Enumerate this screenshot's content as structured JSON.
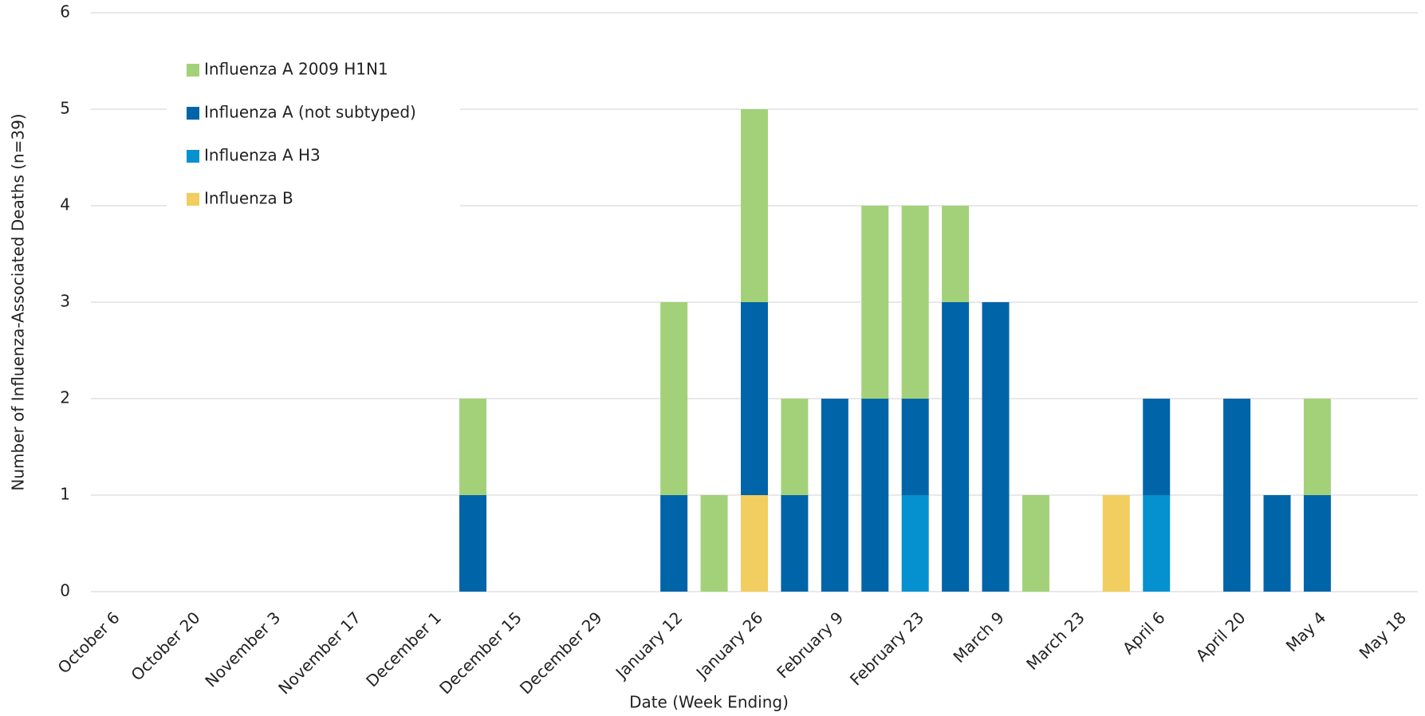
{
  "chart_data": {
    "type": "stacked_bar",
    "x_label": "Date (Week Ending)",
    "y_label": "Number of Influenza-Associated Deaths (n=39)",
    "categories": [
      "October 6",
      null,
      "October 20",
      null,
      "November 3",
      null,
      "November 17",
      null,
      "December 1",
      null,
      "December 15",
      null,
      "December 29",
      null,
      "January 12",
      null,
      "January 26",
      null,
      "February 9",
      null,
      "February 23",
      null,
      "March 9",
      null,
      "March 23",
      null,
      "April 6",
      null,
      "April 20",
      null,
      "May 4",
      null,
      "May 18"
    ],
    "series": [
      {
        "name": "Influenza A 2009 H1N1",
        "color": "#a3d17a",
        "values": [
          0,
          0,
          0,
          0,
          0,
          0,
          0,
          0,
          0,
          1,
          0,
          0,
          0,
          0,
          2,
          1,
          2,
          1,
          0,
          2,
          2,
          1,
          0,
          1,
          0,
          0,
          0,
          0,
          0,
          0,
          1,
          0,
          0
        ]
      },
      {
        "name": "Influenza A (not subtyped)",
        "color": "#0064a8",
        "values": [
          0,
          0,
          0,
          0,
          0,
          0,
          0,
          0,
          0,
          1,
          0,
          0,
          0,
          0,
          1,
          0,
          2,
          1,
          2,
          2,
          1,
          3,
          3,
          0,
          0,
          0,
          1,
          0,
          2,
          1,
          1,
          0,
          0
        ]
      },
      {
        "name": "Influenza A H3",
        "color": "#0591d0",
        "values": [
          0,
          0,
          0,
          0,
          0,
          0,
          0,
          0,
          0,
          0,
          0,
          0,
          0,
          0,
          0,
          0,
          0,
          0,
          0,
          0,
          1,
          0,
          0,
          0,
          0,
          0,
          1,
          0,
          0,
          0,
          0,
          0,
          0
        ]
      },
      {
        "name": "Influenza B",
        "color": "#f2cd5f",
        "values": [
          0,
          0,
          0,
          0,
          0,
          0,
          0,
          0,
          0,
          0,
          0,
          0,
          0,
          0,
          0,
          0,
          1,
          0,
          0,
          0,
          0,
          0,
          0,
          0,
          0,
          1,
          0,
          0,
          0,
          0,
          0,
          0,
          0
        ]
      }
    ],
    "ylim": [
      0,
      6
    ],
    "yticks": [
      0,
      1,
      2,
      3,
      4,
      5,
      6
    ],
    "grid": true,
    "legend": "upper left"
  }
}
